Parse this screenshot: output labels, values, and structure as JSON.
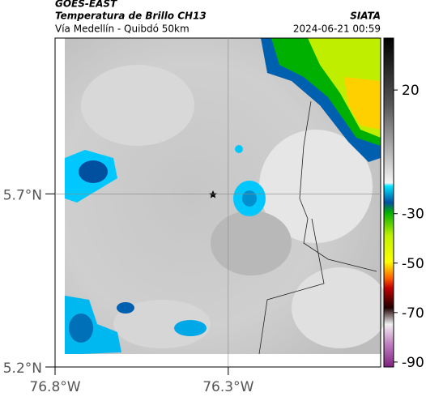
{
  "header": {
    "title": "GOES-EAST",
    "subtitle": "Temperatura de Brillo CH13",
    "region": "Vía Medellín - Quibdó 50km",
    "source": "SIATA",
    "datetime": "2024-06-21 00:59"
  },
  "map": {
    "lat_range": [
      5.2,
      6.15
    ],
    "lon_range": [
      -76.8,
      -75.86
    ],
    "lat_ticks": [
      {
        "value": 5.7,
        "label": "5.7°N"
      },
      {
        "value": 5.2,
        "label": "5.2°N"
      }
    ],
    "lon_ticks": [
      {
        "value": -76.8,
        "label": "76.8°W"
      },
      {
        "value": -76.3,
        "label": "76.3°W"
      }
    ]
  },
  "colorbar": {
    "range": [
      -92,
      41
    ],
    "ticks": [
      20,
      -30,
      -50,
      -70,
      -90
    ]
  }
}
